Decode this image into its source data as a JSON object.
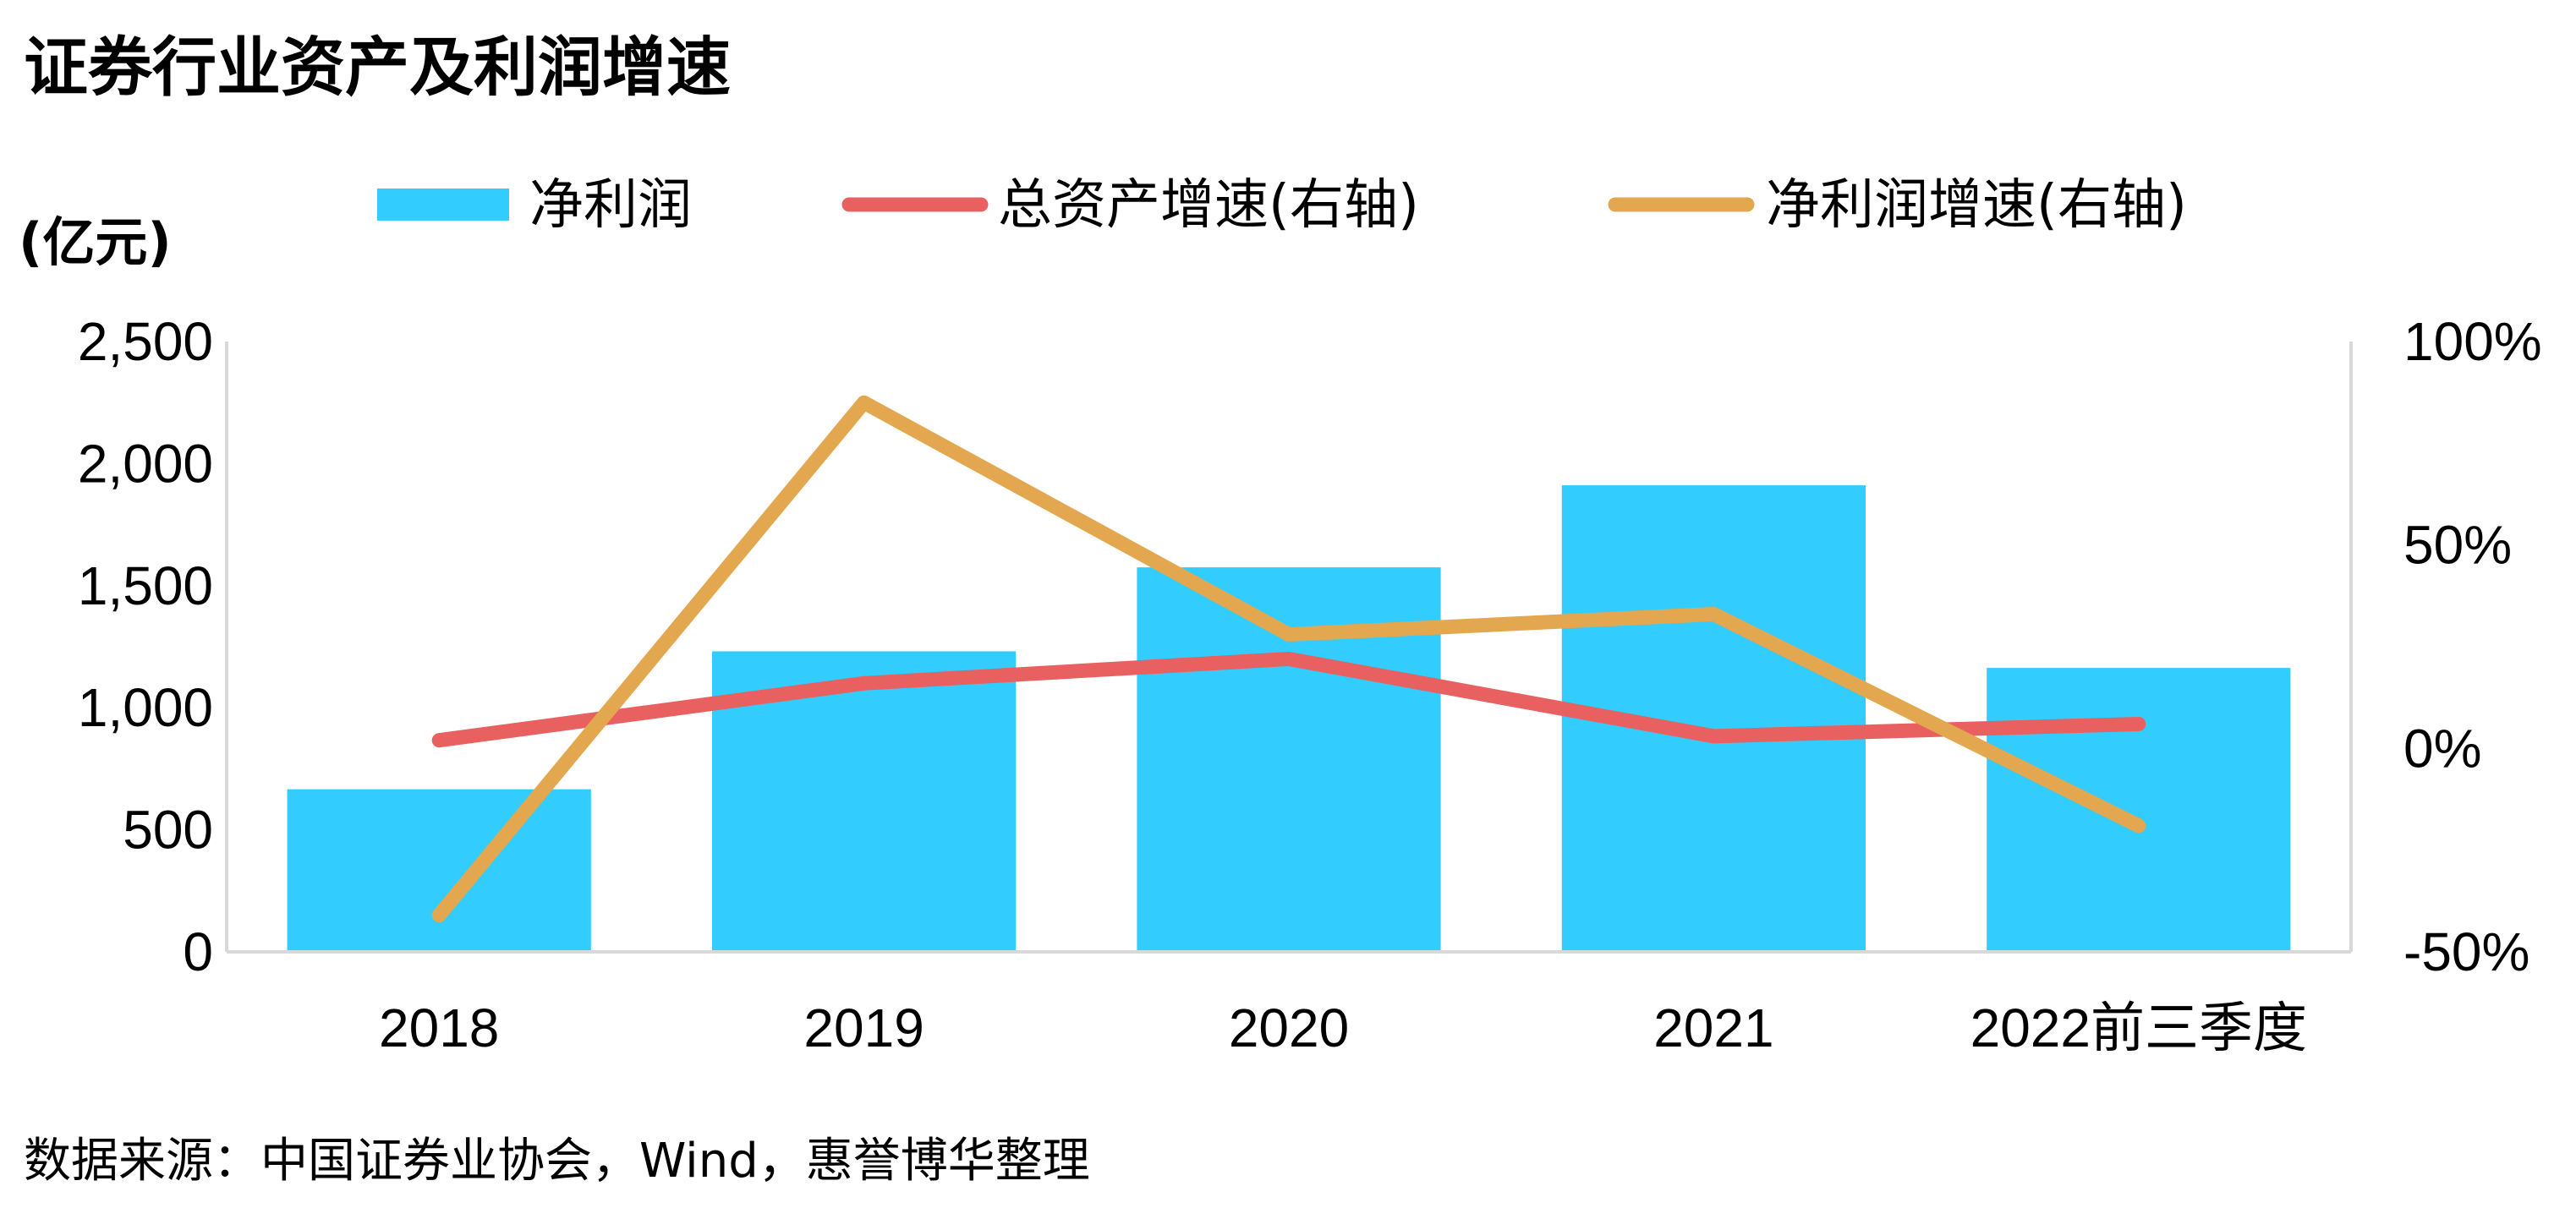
{
  "chart_data": {
    "type": "bar",
    "title": "证券行业资产及利润增速",
    "y_left_label": "(亿元)",
    "categories": [
      "2018",
      "2019",
      "2020",
      "2021",
      "2022前三季度"
    ],
    "ylim_left": [
      0,
      2500
    ],
    "yticks_left": [
      "0",
      "500",
      "1,000",
      "1,500",
      "2,000",
      "2,500"
    ],
    "yticks_left_values": [
      0,
      500,
      1000,
      1500,
      2000,
      2500
    ],
    "ylim_right": [
      -50,
      100
    ],
    "yticks_right": [
      "-50%",
      "0%",
      "50%",
      "100%"
    ],
    "yticks_right_values": [
      -50,
      0,
      50,
      100
    ],
    "series": [
      {
        "name": "净利润",
        "type": "bar",
        "axis": "left",
        "color": "#33CCFF",
        "values": [
          666,
          1231,
          1575,
          1911,
          1163
        ]
      },
      {
        "name": "总资产增速(右轴)",
        "type": "line",
        "axis": "right",
        "color": "#E8605F",
        "values": [
          2,
          16,
          22,
          3,
          6
        ]
      },
      {
        "name": "净利润增速(右轴)",
        "type": "line",
        "axis": "right",
        "color": "#E3A74F",
        "values": [
          -41,
          85,
          28,
          33,
          -19
        ]
      }
    ],
    "legend_position": "top",
    "grid": false
  },
  "source_text": "数据来源：中国证券业协会，Wind，惠誉博华整理"
}
